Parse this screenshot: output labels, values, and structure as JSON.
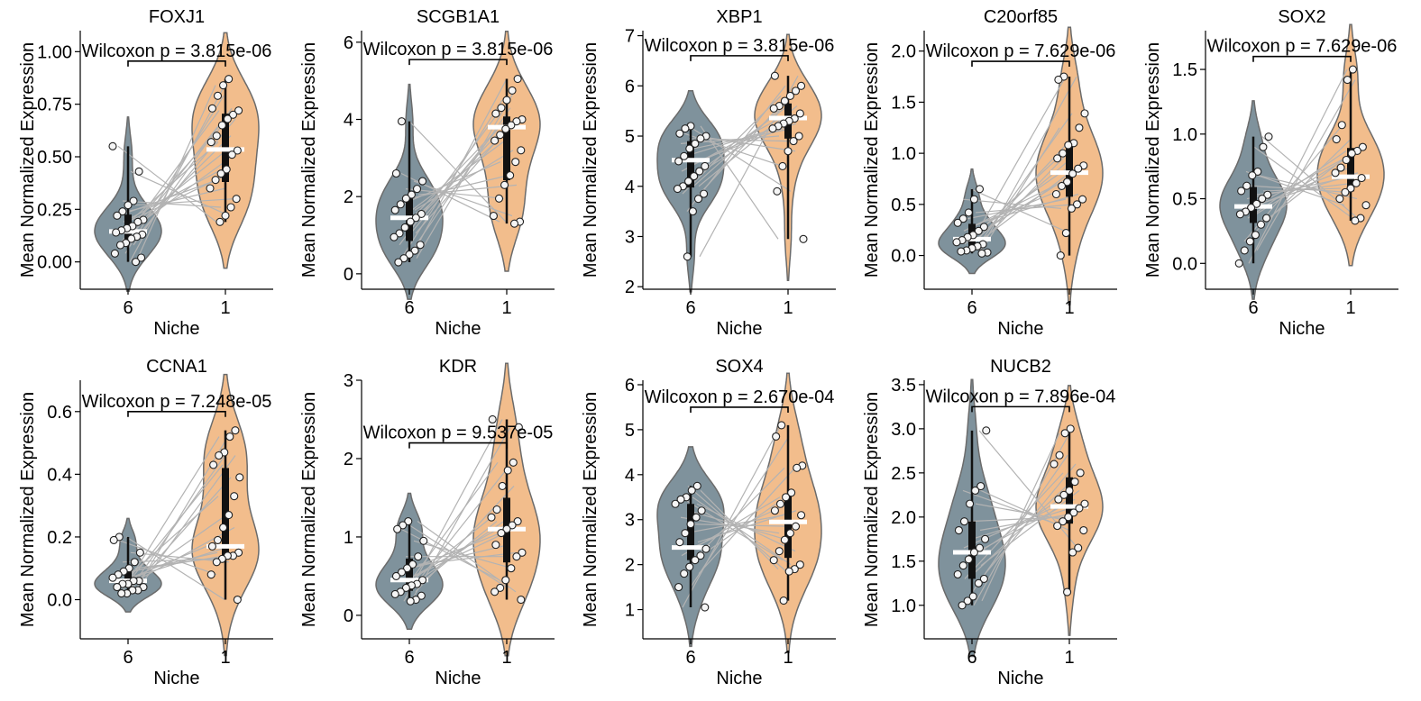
{
  "colors": {
    "niche6": "#7f929c",
    "niche1": "#f2bd8c",
    "violin_edge": "#6b6b6b",
    "pair_line": "#b3b3b3",
    "median": "#ffffff"
  },
  "chart_data": [
    {
      "type": "violin",
      "title": "FOXJ1",
      "xlabel": "Niche",
      "ylabel": "Mean Normalized Expression",
      "categories": [
        "6",
        "1"
      ],
      "ylim": [
        -0.13,
        1.1
      ],
      "yticks": [
        0.0,
        0.25,
        0.5,
        0.75,
        1.0
      ],
      "ytick_labels": [
        "0.00",
        "0.25",
        "0.50",
        "0.75",
        "1.00"
      ],
      "annotation": "Wilcoxon p = 3.815e-06",
      "bracket_y": 0.955,
      "medians": [
        0.145,
        0.535
      ],
      "points": [
        [
          0.55,
          0.43,
          0.29,
          0.27,
          0.24,
          0.22,
          0.2,
          0.19,
          0.17,
          0.16,
          0.15,
          0.14,
          0.13,
          0.12,
          0.11,
          0.09,
          0.08,
          0.04,
          0.02,
          0.0
        ],
        [
          0.87,
          0.84,
          0.79,
          0.73,
          0.72,
          0.7,
          0.68,
          0.65,
          0.6,
          0.57,
          0.53,
          0.51,
          0.44,
          0.42,
          0.39,
          0.35,
          0.3,
          0.26,
          0.22,
          0.19
        ]
      ]
    },
    {
      "type": "violin",
      "title": "SCGB1A1",
      "xlabel": "Niche",
      "ylabel": "Mean Normalized Expression",
      "categories": [
        "6",
        "1"
      ],
      "ylim": [
        -0.4,
        6.3
      ],
      "yticks": [
        0,
        2,
        4,
        6
      ],
      "ytick_labels": [
        "0",
        "2",
        "4",
        "6"
      ],
      "annotation": "Wilcoxon p = 3.815e-06",
      "bracket_y": 5.55,
      "medians": [
        1.45,
        3.8
      ],
      "points": [
        [
          3.95,
          2.6,
          2.4,
          2.2,
          2.05,
          1.95,
          1.8,
          1.65,
          1.55,
          1.45,
          1.35,
          1.2,
          1.05,
          0.95,
          0.75,
          0.6,
          0.5,
          0.4,
          0.3
        ],
        [
          5.05,
          4.75,
          4.5,
          4.3,
          4.15,
          4.0,
          3.95,
          3.85,
          3.75,
          3.6,
          3.45,
          3.2,
          2.9,
          2.55,
          2.3,
          1.95,
          1.5,
          1.35,
          1.3
        ]
      ]
    },
    {
      "type": "violin",
      "title": "XBP1",
      "xlabel": "Niche",
      "ylabel": "Mean Normalized Expression",
      "categories": [
        "6",
        "1"
      ],
      "ylim": [
        1.95,
        7.1
      ],
      "yticks": [
        2,
        3,
        4,
        5,
        6,
        7
      ],
      "ytick_labels": [
        "2",
        "3",
        "4",
        "5",
        "6",
        "7"
      ],
      "annotation": "Wilcoxon p = 3.815e-06",
      "bracket_y": 6.6,
      "medians": [
        4.52,
        5.36
      ],
      "points": [
        [
          5.2,
          5.15,
          5.05,
          5.0,
          4.95,
          4.85,
          4.75,
          4.6,
          4.5,
          4.4,
          4.3,
          4.2,
          4.1,
          4.0,
          3.95,
          3.85,
          3.75,
          3.5,
          2.6
        ],
        [
          6.2,
          6.0,
          5.9,
          5.8,
          5.7,
          5.6,
          5.55,
          5.45,
          5.35,
          5.3,
          5.25,
          5.2,
          5.15,
          5.0,
          4.9,
          4.7,
          4.4,
          3.9,
          2.95
        ]
      ]
    },
    {
      "type": "violin",
      "title": "C20orf85",
      "xlabel": "Niche",
      "ylabel": "Mean Normalized Expression",
      "categories": [
        "6",
        "1"
      ],
      "ylim": [
        -0.33,
        2.2
      ],
      "yticks": [
        0.0,
        0.5,
        1.0,
        1.5,
        2.0
      ],
      "ytick_labels": [
        "0.0",
        "0.5",
        "1.0",
        "1.5",
        "2.0"
      ],
      "annotation": "Wilcoxon p = 7.629e-06",
      "bracket_y": 1.9,
      "medians": [
        0.16,
        0.81
      ],
      "points": [
        [
          0.65,
          0.55,
          0.42,
          0.36,
          0.32,
          0.28,
          0.24,
          0.2,
          0.18,
          0.15,
          0.13,
          0.11,
          0.09,
          0.07,
          0.05,
          0.04,
          0.03,
          0.02
        ],
        [
          1.75,
          1.72,
          1.39,
          1.25,
          1.1,
          1.08,
          1.0,
          0.95,
          0.88,
          0.85,
          0.8,
          0.72,
          0.68,
          0.6,
          0.55,
          0.5,
          0.46,
          0.22,
          0.0
        ]
      ]
    },
    {
      "type": "violin",
      "title": "SOX2",
      "xlabel": "Niche",
      "ylabel": "Mean Normalized Expression",
      "categories": [
        "6",
        "1"
      ],
      "ylim": [
        -0.2,
        1.8
      ],
      "yticks": [
        0.0,
        0.5,
        1.0,
        1.5
      ],
      "ytick_labels": [
        "0.0",
        "0.5",
        "1.0",
        "1.5"
      ],
      "annotation": "Wilcoxon p = 7.629e-06",
      "bracket_y": 1.6,
      "medians": [
        0.44,
        0.67
      ],
      "points": [
        [
          0.98,
          0.9,
          0.71,
          0.68,
          0.6,
          0.56,
          0.53,
          0.5,
          0.46,
          0.43,
          0.4,
          0.38,
          0.35,
          0.3,
          0.22,
          0.17,
          0.1,
          0.0
        ],
        [
          1.5,
          1.42,
          1.07,
          0.96,
          0.9,
          0.87,
          0.85,
          0.8,
          0.74,
          0.7,
          0.66,
          0.62,
          0.58,
          0.55,
          0.5,
          0.45,
          0.35,
          0.33
        ]
      ]
    },
    {
      "type": "violin",
      "title": "CCNA1",
      "xlabel": "Niche",
      "ylabel": "Mean Normalized Expression",
      "categories": [
        "6",
        "1"
      ],
      "ylim": [
        -0.125,
        0.7
      ],
      "yticks": [
        0.0,
        0.2,
        0.4,
        0.6
      ],
      "ytick_labels": [
        "0.0",
        "0.2",
        "0.4",
        "0.6"
      ],
      "annotation": "Wilcoxon p = 7.248e-05",
      "bracket_y": 0.6,
      "medians": [
        0.06,
        0.17
      ],
      "points": [
        [
          0.2,
          0.19,
          0.15,
          0.12,
          0.1,
          0.09,
          0.08,
          0.07,
          0.06,
          0.06,
          0.05,
          0.05,
          0.04,
          0.04,
          0.03,
          0.03,
          0.02,
          0.02
        ],
        [
          0.54,
          0.52,
          0.47,
          0.46,
          0.43,
          0.39,
          0.33,
          0.27,
          0.23,
          0.19,
          0.17,
          0.15,
          0.14,
          0.14,
          0.13,
          0.12,
          0.08,
          0.0
        ]
      ]
    },
    {
      "type": "violin",
      "title": "KDR",
      "xlabel": "Niche",
      "ylabel": "Mean Normalized Expression",
      "categories": [
        "6",
        "1"
      ],
      "ylim": [
        -0.3,
        3.0
      ],
      "yticks": [
        0,
        1,
        2,
        3
      ],
      "ytick_labels": [
        "0",
        "1",
        "2",
        "3"
      ],
      "annotation": "Wilcoxon p = 9.537e-05",
      "bracket_y": 2.2,
      "medians": [
        0.45,
        1.1
      ],
      "points": [
        [
          1.2,
          1.15,
          1.1,
          0.95,
          0.75,
          0.65,
          0.6,
          0.55,
          0.5,
          0.45,
          0.4,
          0.38,
          0.35,
          0.3,
          0.27,
          0.25,
          0.2,
          0.18
        ],
        [
          2.5,
          2.4,
          1.95,
          1.85,
          1.65,
          1.35,
          1.25,
          1.2,
          1.15,
          1.1,
          1.05,
          0.9,
          0.8,
          0.75,
          0.6,
          0.45,
          0.35,
          0.3,
          0.2
        ]
      ]
    },
    {
      "type": "violin",
      "title": "SOX4",
      "xlabel": "Niche",
      "ylabel": "Mean Normalized Expression",
      "categories": [
        "6",
        "1"
      ],
      "ylim": [
        0.35,
        6.1
      ],
      "yticks": [
        1,
        2,
        3,
        4,
        5,
        6
      ],
      "ytick_labels": [
        "1",
        "2",
        "3",
        "4",
        "5",
        "6"
      ],
      "annotation": "Wilcoxon p = 2.670e-04",
      "bracket_y": 5.5,
      "medians": [
        2.38,
        2.95
      ],
      "points": [
        [
          3.75,
          3.65,
          3.5,
          3.45,
          3.35,
          3.2,
          3.05,
          2.9,
          2.7,
          2.5,
          2.35,
          2.2,
          2.1,
          1.95,
          1.8,
          1.5,
          1.05
        ],
        [
          5.1,
          4.85,
          4.2,
          4.15,
          3.6,
          3.5,
          3.35,
          3.2,
          3.1,
          2.85,
          2.7,
          2.55,
          2.3,
          2.1,
          2.0,
          1.9,
          1.85,
          1.2
        ]
      ]
    },
    {
      "type": "violin",
      "title": "NUCB2",
      "xlabel": "Niche",
      "ylabel": "Mean Normalized Expression",
      "categories": [
        "6",
        "1"
      ],
      "ylim": [
        0.62,
        3.55
      ],
      "yticks": [
        1.0,
        1.5,
        2.0,
        2.5,
        3.0,
        3.5
      ],
      "ytick_labels": [
        "1.0",
        "1.5",
        "2.0",
        "2.5",
        "3.0",
        "3.5"
      ],
      "annotation": "Wilcoxon p = 7.896e-04",
      "bracket_y": 3.25,
      "medians": [
        1.6,
        2.12
      ],
      "points": [
        [
          2.98,
          2.35,
          2.3,
          2.15,
          1.95,
          1.85,
          1.75,
          1.65,
          1.6,
          1.52,
          1.45,
          1.35,
          1.3,
          1.25,
          1.1,
          1.05,
          1.0
        ],
        [
          3.0,
          2.95,
          2.7,
          2.6,
          2.5,
          2.4,
          2.3,
          2.25,
          2.2,
          2.15,
          2.1,
          2.05,
          2.0,
          1.95,
          1.9,
          1.85,
          1.65,
          1.6,
          1.15
        ]
      ]
    }
  ]
}
